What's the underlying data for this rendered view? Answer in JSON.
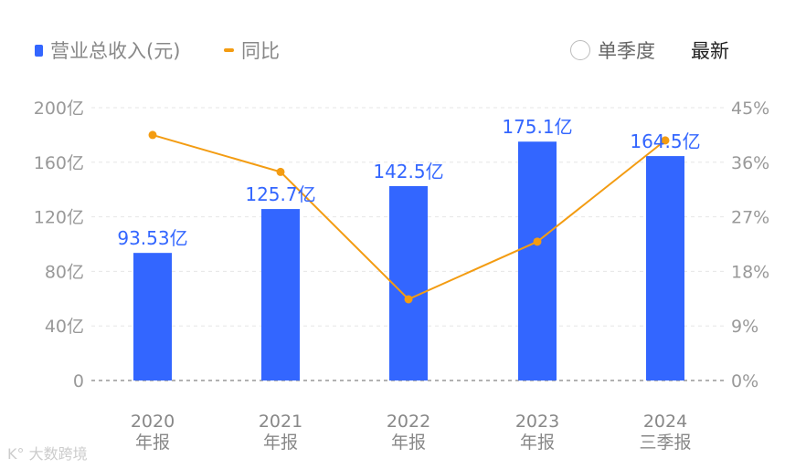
{
  "legend": {
    "revenue": "营业总收入(元)",
    "yoy": "同比"
  },
  "controls": {
    "single_quarter": "单季度",
    "latest": "最新"
  },
  "watermark": "大数跨境",
  "colors": {
    "bar": "#3366ff",
    "line": "#f39c12",
    "axis_text": "#999999"
  },
  "chart_data": {
    "type": "bar",
    "categories": [
      [
        "2020",
        "年报"
      ],
      [
        "2021",
        "年报"
      ],
      [
        "2022",
        "年报"
      ],
      [
        "2023",
        "年报"
      ],
      [
        "2024",
        "三季报"
      ]
    ],
    "series": [
      {
        "name": "营业总收入(元)",
        "type": "bar",
        "values": [
          93.53,
          125.7,
          142.5,
          175.1,
          164.5
        ],
        "labels": [
          "93.53亿",
          "125.7亿",
          "142.5亿",
          "175.1亿",
          "164.5亿"
        ],
        "unit": "亿"
      },
      {
        "name": "同比",
        "type": "line",
        "values": [
          40.5,
          34.4,
          13.4,
          22.9,
          39.6
        ],
        "unit": "%"
      }
    ],
    "y_left": {
      "ylim": [
        0,
        200
      ],
      "ticks": [
        "0",
        "40亿",
        "80亿",
        "120亿",
        "160亿",
        "200亿"
      ]
    },
    "y_right": {
      "ylim": [
        0,
        45
      ],
      "ticks": [
        "0%",
        "9%",
        "18%",
        "27%",
        "36%",
        "45%"
      ]
    },
    "grid": true,
    "legend_position": "top-left"
  }
}
